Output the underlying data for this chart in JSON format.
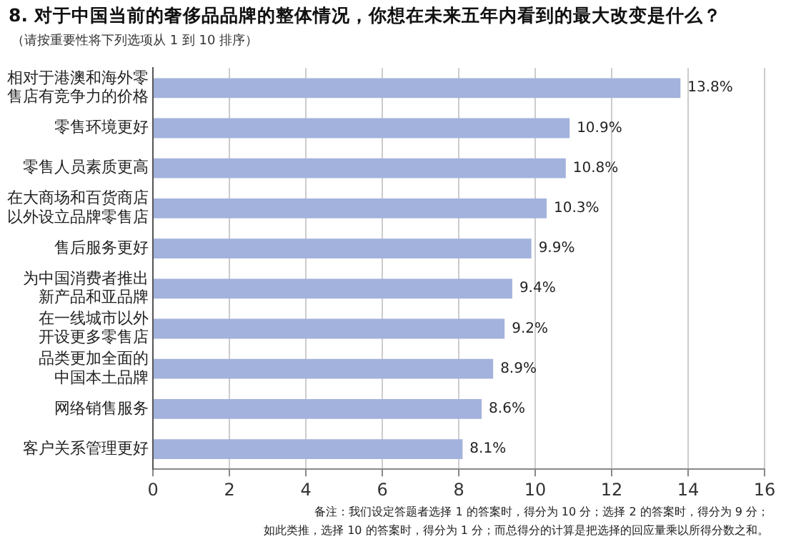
{
  "chart_data": {
    "type": "bar",
    "orientation": "horizontal",
    "title": "8. 对于中国当前的奢侈品品牌的整体情况，你想在未来五年内看到的最大改变是什么？",
    "subtitle": "（请按重要性将下列选项从 1 到 10 排序）",
    "categories": [
      "相对于港澳和海外零售店有竞争力的价格",
      "零售环境更好",
      "零售人员素质更高",
      "在大商场和百货商店以外设立品牌零售店",
      "售后服务更好",
      "为中国消费者推出新产品和亚品牌",
      "在一线城市以外开设更多零售店",
      "品类更加全面的中国本土品牌",
      "网络销售服务",
      "客户关系管理更好"
    ],
    "values": [
      13.8,
      10.9,
      10.8,
      10.3,
      9.9,
      9.4,
      9.2,
      8.9,
      8.6,
      8.1
    ],
    "value_labels": [
      "13.8%",
      "10.9%",
      "10.8%",
      "10.3%",
      "9.9%",
      "9.4%",
      "9.2%",
      "8.9%",
      "8.6%",
      "8.1%"
    ],
    "color": "#a3b2dc",
    "xlim": [
      0,
      16
    ],
    "xticks": [
      0,
      2,
      4,
      6,
      8,
      10,
      12,
      14,
      16
    ],
    "grid": "x",
    "legend": false,
    "annotations": [
      "备注：我们设定答题者选择 1 的答案时，得分为 10 分；选择 2 的答案时，得分为 9 分；",
      "如此类推，选择 10 的答案时，得分为 1 分；而总得分的计算是把选择的回应量乘以所得分数之和。"
    ]
  }
}
